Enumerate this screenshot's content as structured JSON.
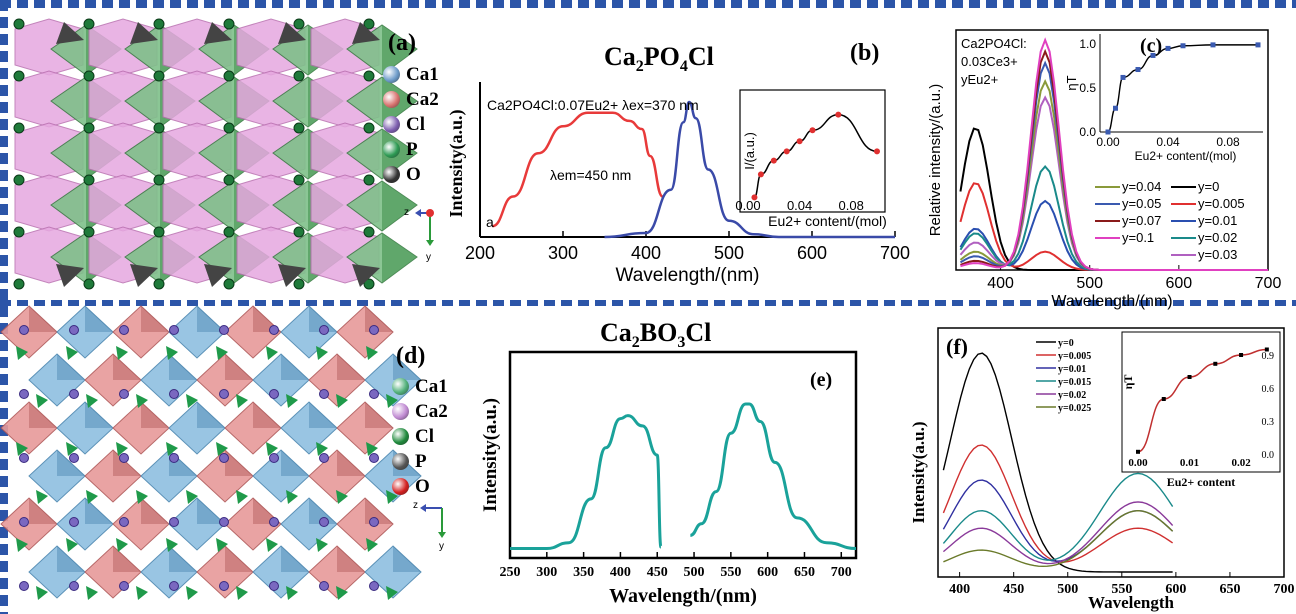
{
  "panels": {
    "a": {
      "label": "(a)",
      "legend": [
        "Ca1",
        "Ca2",
        "Cl",
        "P",
        "O"
      ],
      "legend_colors": [
        "#6d9bc9",
        "#d9736f",
        "#7e5fb0",
        "#2e9b54",
        "#333333"
      ],
      "axis_z": "z",
      "axis_y": "y"
    },
    "d": {
      "label": "(d)",
      "legend": [
        "Ca1",
        "Ca2",
        "Cl",
        "P",
        "O"
      ],
      "legend_colors": [
        "#50b07a",
        "#c08ad2",
        "#1f8a3c",
        "#555555",
        "#d42020"
      ],
      "axis_z": "z",
      "axis_y": "y"
    },
    "b": {
      "label": "(b)",
      "title_main": "Ca",
      "title_sub1": "2",
      "title_mid": "PO",
      "title_sub2": "4",
      "title_end": "Cl",
      "annotation": "Ca2PO4Cl:0.07Eu2+  λex=370 nm",
      "lambda_em": "λem=450 nm",
      "corner": "a",
      "ylabel": "Intensity(a.u.)",
      "xlabel": "Wavelength/(nm)",
      "xticks": [
        "200",
        "300",
        "400",
        "500",
        "600",
        "700"
      ],
      "inset_ylabel": "I/(a.u.)",
      "inset_xlabel": "Eu2+ content/(mol)",
      "inset_xticks": [
        "0.00",
        "0.04",
        "0.08"
      ]
    },
    "c": {
      "label": "(c)",
      "annotation": [
        "Ca2PO4Cl:",
        "0.03Ce3+",
        "yEu2+"
      ],
      "ylabel": "Relative intensity/(a.u.)",
      "xlabel": "Wavelength/(nm)",
      "xticks": [
        "400",
        "500",
        "600",
        "700"
      ],
      "inset_ylabel": "ηT",
      "inset_xlabel": "Eu2+ content/(mol)",
      "inset_xticks": [
        "0.00",
        "0.04",
        "0.08"
      ],
      "inset_yticks": [
        "0.0",
        "0.5",
        "1.0"
      ],
      "legend_left": [
        "y=0.04",
        "y=0.05",
        "y=0.07",
        "y=0.1"
      ],
      "legend_left_colors": [
        "#8a9a3a",
        "#3a5ab0",
        "#8a1a1a",
        "#e040c0"
      ],
      "legend_right": [
        "y=0",
        "y=0.005",
        "y=0.01",
        "y=0.02",
        "y=0.03"
      ],
      "legend_right_colors": [
        "#000000",
        "#e03030",
        "#2a4fb0",
        "#1a8a8a",
        "#b060c0"
      ]
    },
    "e": {
      "title_main": "Ca",
      "title_sub1": "2",
      "title_mid": "BO",
      "title_sub2": "3",
      "title_end": "Cl",
      "label": "(e)",
      "ylabel": "Intensity(a.u.)",
      "xlabel": "Wavelength/(nm)",
      "xticks": [
        "250",
        "300",
        "350",
        "400",
        "450",
        "500",
        "550",
        "600",
        "650",
        "700"
      ]
    },
    "f": {
      "label": "(f)",
      "ylabel": "Intensity(a.u.)",
      "xlabel": "Wavelength",
      "xticks": [
        "400",
        "450",
        "500",
        "550",
        "600",
        "650",
        "700"
      ],
      "legend": [
        "y=0",
        "y=0.005",
        "y=0.01",
        "y=0.015",
        "y=0.02",
        "y=0.025"
      ],
      "legend_colors": [
        "#000000",
        "#d03030",
        "#3030a0",
        "#1a8a8a",
        "#8a3a9a",
        "#6a7a2a"
      ],
      "inset_ylabel": "ηT",
      "inset_xlabel": "Eu2+ content",
      "inset_xticks": [
        "0.00",
        "0.01",
        "0.02"
      ],
      "inset_yticks": [
        "0.0",
        "0.3",
        "0.6",
        "0.9"
      ]
    }
  },
  "chart_data": [
    {
      "type": "line",
      "panel": "b",
      "x_range": [
        200,
        700
      ],
      "series": [
        {
          "color": "#e83a3a",
          "x": [
            215,
            240,
            270,
            300,
            330,
            360,
            380,
            395,
            405,
            420
          ],
          "values": [
            0.08,
            0.3,
            0.62,
            0.82,
            0.92,
            0.92,
            0.86,
            0.8,
            0.6,
            0.3
          ]
        },
        {
          "color": "#3a4aa8",
          "x": [
            350,
            400,
            430,
            445,
            452,
            460,
            475,
            500,
            530,
            560,
            600,
            700
          ],
          "values": [
            0,
            0.03,
            0.35,
            0.85,
            1.0,
            0.88,
            0.5,
            0.12,
            0.02,
            0,
            0,
            0
          ]
        }
      ]
    },
    {
      "type": "line",
      "panel": "b-inset",
      "x": [
        0.005,
        0.01,
        0.02,
        0.03,
        0.04,
        0.05,
        0.07,
        0.1
      ],
      "values": [
        0.05,
        0.3,
        0.45,
        0.55,
        0.66,
        0.78,
        0.95,
        0.55
      ]
    },
    {
      "type": "line",
      "panel": "c-inset",
      "x": [
        0,
        0.005,
        0.01,
        0.02,
        0.03,
        0.04,
        0.05,
        0.07,
        0.1
      ],
      "values": [
        0,
        0.27,
        0.62,
        0.71,
        0.87,
        0.95,
        0.98,
        0.99,
        0.99
      ]
    },
    {
      "type": "line",
      "panel": "c",
      "x_range": [
        350,
        700
      ],
      "series": [
        {
          "name": "y=0",
          "color": "#000000",
          "peak450": 0.0,
          "peak370": 0.62
        },
        {
          "name": "y=0.005",
          "color": "#e03030",
          "peak450": 0.08,
          "peak370": 0.38
        },
        {
          "name": "y=0.01",
          "color": "#2a4fb0",
          "peak450": 0.3,
          "peak370": 0.18
        },
        {
          "name": "y=0.02",
          "color": "#1a8a8a",
          "peak450": 0.45,
          "peak370": 0.16
        },
        {
          "name": "y=0.03",
          "color": "#b060c0",
          "peak450": 0.75,
          "peak370": 0.12
        },
        {
          "name": "y=0.04",
          "color": "#8a9a3a",
          "peak450": 0.82,
          "peak370": 0.08
        },
        {
          "name": "y=0.05",
          "color": "#3a5ab0",
          "peak450": 0.9,
          "peak370": 0.06
        },
        {
          "name": "y=0.07",
          "color": "#8a1a1a",
          "peak450": 0.95,
          "peak370": 0.04
        },
        {
          "name": "y=0.1",
          "color": "#e040c0",
          "peak450": 1.0,
          "peak370": 0.03
        }
      ]
    },
    {
      "type": "line",
      "panel": "e",
      "x_range": [
        250,
        720
      ],
      "series": [
        {
          "color": "#1aa29a",
          "x": [
            250,
            300,
            330,
            360,
            380,
            400,
            410,
            430,
            450,
            455
          ],
          "values": [
            0.01,
            0.01,
            0.05,
            0.35,
            0.7,
            0.9,
            0.92,
            0.85,
            0.65,
            0.02
          ]
        },
        {
          "color": "#1aa29a",
          "x": [
            495,
            510,
            530,
            550,
            570,
            575,
            590,
            610,
            640,
            680,
            720
          ],
          "values": [
            0.1,
            0.18,
            0.4,
            0.8,
            1.0,
            1.0,
            0.88,
            0.6,
            0.22,
            0.05,
            0.01
          ]
        }
      ]
    },
    {
      "type": "line",
      "panel": "f",
      "x_range": [
        380,
        700
      ],
      "series": [
        {
          "name": "y=0",
          "color": "#000000",
          "p1": 1.0,
          "p2": 0.0
        },
        {
          "name": "y=0.005",
          "color": "#d03030",
          "p1": 0.58,
          "p2": 0.2
        },
        {
          "name": "y=0.01",
          "color": "#3030a0",
          "p1": 0.42,
          "p2": 0.28
        },
        {
          "name": "y=0.015",
          "color": "#1a8a8a",
          "p1": 0.28,
          "p2": 0.45
        },
        {
          "name": "y=0.02",
          "color": "#8a3a9a",
          "p1": 0.2,
          "p2": 0.32
        },
        {
          "name": "y=0.025",
          "color": "#6a7a2a",
          "p1": 0.1,
          "p2": 0.28
        }
      ]
    },
    {
      "type": "scatter",
      "panel": "f-inset",
      "x": [
        0,
        0.005,
        0.01,
        0.015,
        0.02,
        0.025
      ],
      "values": [
        0.02,
        0.5,
        0.7,
        0.82,
        0.9,
        0.95
      ]
    }
  ]
}
